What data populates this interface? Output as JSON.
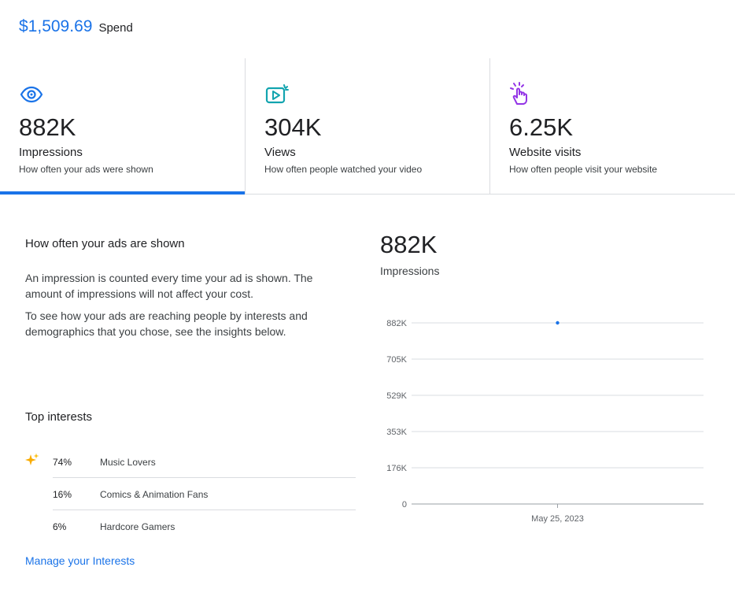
{
  "spend": {
    "amount": "$1,509.69",
    "label": "Spend"
  },
  "metrics": [
    {
      "icon": "eye-icon",
      "value": "882K",
      "title": "Impressions",
      "description": "How often your ads were shown",
      "active": true,
      "color": "#1a73e8"
    },
    {
      "icon": "play-icon",
      "value": "304K",
      "title": "Views",
      "description": "How often people watched your video",
      "active": false,
      "color": "#12a4af"
    },
    {
      "icon": "tap-icon",
      "value": "6.25K",
      "title": "Website visits",
      "description": "How often people visit your website",
      "active": false,
      "color": "#9334e6"
    }
  ],
  "detail": {
    "title": "How often your ads are shown",
    "paragraph1": "An impression is counted every time your ad is shown. The amount of impressions will not affect your cost.",
    "paragraph2": "To see how your ads are reaching people by interests and demographics that you chose, see the insights below."
  },
  "interests": {
    "title": "Top interests",
    "items": [
      {
        "percent": "74%",
        "name": "Music Lovers",
        "icon": "sparkle-icon"
      },
      {
        "percent": "16%",
        "name": "Comics & Animation Fans"
      },
      {
        "percent": "6%",
        "name": "Hardcore Gamers"
      }
    ],
    "link": "Manage your Interests"
  },
  "chart_summary": {
    "value": "882K",
    "label": "Impressions"
  },
  "chart_data": {
    "type": "line",
    "x": [
      "May 25, 2023"
    ],
    "series": [
      {
        "values": [
          882000
        ]
      }
    ],
    "yticks": [
      "0",
      "176K",
      "353K",
      "529K",
      "705K",
      "882K"
    ],
    "ylim": [
      0,
      882000
    ],
    "grid": true,
    "color": "#1a73e8"
  }
}
